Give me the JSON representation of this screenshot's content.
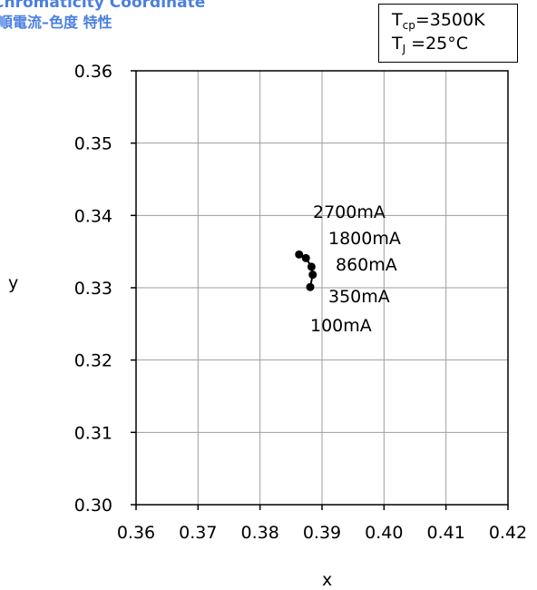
{
  "header": {
    "title": "Chromaticity Coordinate",
    "subtitle": "順電流–色度 特性"
  },
  "conditions": {
    "tcp_symbol": "T",
    "tcp_sub": "cp",
    "tcp_value": "=3500K",
    "tj_symbol": "T",
    "tj_sub": "J",
    "tj_value": "=25°C"
  },
  "chart_data": {
    "type": "line",
    "title": "Chromaticity Coordinate",
    "xlabel": "x",
    "ylabel": "y",
    "xlim": [
      0.36,
      0.42
    ],
    "ylim": [
      0.3,
      0.36
    ],
    "xticks": [
      "0.36",
      "0.37",
      "0.38",
      "0.39",
      "0.40",
      "0.41",
      "0.42"
    ],
    "yticks": [
      "0.30",
      "0.31",
      "0.32",
      "0.33",
      "0.34",
      "0.35",
      "0.36"
    ],
    "grid": true,
    "series": [
      {
        "points": [
          {
            "x": 0.3881,
            "y": 0.3301,
            "label": "100mA"
          },
          {
            "x": 0.3885,
            "y": 0.3318,
            "label": "350mA"
          },
          {
            "x": 0.3883,
            "y": 0.3329,
            "label": "860mA"
          },
          {
            "x": 0.3874,
            "y": 0.3341,
            "label": "1800mA"
          },
          {
            "x": 0.3863,
            "y": 0.3346,
            "label": "2700mA"
          }
        ]
      }
    ]
  }
}
